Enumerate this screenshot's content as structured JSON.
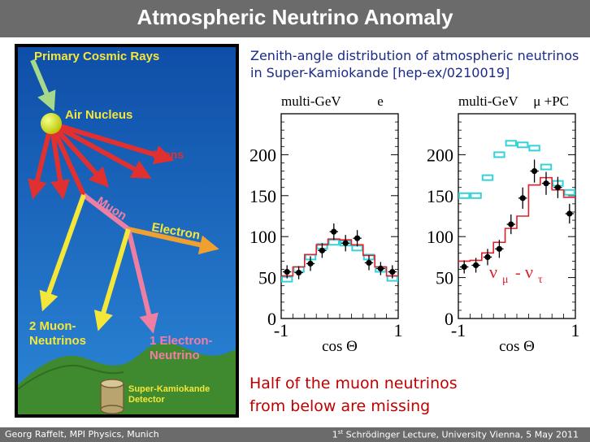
{
  "title": "Atmospheric Neutrino Anomaly",
  "illustration": {
    "primary_cosmic_rays": "Primary Cosmic Rays",
    "air_nucleus": "Air Nucleus",
    "pions": "Pions",
    "muon": "Muon",
    "electron": "Electron",
    "muon_neutrinos_1": "2 Muon-",
    "muon_neutrinos_2": "Neutrinos",
    "electron_neutrino_1": "1 Electron-",
    "electron_neutrino_2": "Neutrino",
    "detector_1": "Super-Kamiokande",
    "detector_2": "Detector",
    "colors": {
      "sky": "#1a6cc1",
      "ground": "#3f8a2f",
      "arrows_red": "#e03030",
      "arrows_yellow": "#f5e63a",
      "muon_pink": "#ee7fa3",
      "electron_orange": "#f0a030",
      "cosmic_green": "#a6d98a",
      "label_yellow": "#f5e63a"
    }
  },
  "caption_top": {
    "line1": "Zenith-angle distribution of atmospheric neutrinos",
    "line2": "in Super-Kamiokande [hep-ex/0210019]"
  },
  "chart_data": [
    {
      "type": "line",
      "header": "multi-GeV",
      "flavor_label": "e",
      "xlabel": "cos Θ",
      "xlim": [
        -1,
        1
      ],
      "ylim": [
        0,
        250
      ],
      "yticks": [
        0,
        50,
        100,
        150,
        200
      ],
      "xtick_labels": [
        "-1",
        "1"
      ],
      "bins": [
        -0.9,
        -0.7,
        -0.5,
        -0.3,
        -0.1,
        0.1,
        0.3,
        0.5,
        0.7,
        0.9
      ],
      "data": [
        57,
        56,
        67,
        83,
        106,
        92,
        98,
        68,
        61,
        57
      ],
      "errors": [
        8,
        8,
        9,
        9,
        10,
        10,
        10,
        9,
        8,
        8
      ],
      "mc_no_osc": [
        48,
        60,
        75,
        88,
        93,
        92,
        86,
        75,
        60,
        49
      ],
      "mc_osc": [
        52,
        63,
        78,
        90,
        97,
        96,
        90,
        77,
        63,
        52
      ]
    },
    {
      "type": "line",
      "header": "multi-GeV",
      "flavor_label": "μ +PC",
      "xlabel": "cos Θ",
      "xlim": [
        -1,
        1
      ],
      "ylim": [
        0,
        250
      ],
      "yticks": [
        0,
        50,
        100,
        150,
        200
      ],
      "xtick_labels": [
        "-1",
        "1"
      ],
      "oscillation_label": {
        "nu": "ν",
        "sub1": "μ",
        "dash": "-",
        "sub2": "τ"
      },
      "bins": [
        -0.9,
        -0.7,
        -0.5,
        -0.3,
        -0.1,
        0.1,
        0.3,
        0.5,
        0.7,
        0.9
      ],
      "data": [
        63,
        65,
        75,
        85,
        115,
        147,
        180,
        165,
        160,
        128
      ],
      "errors": [
        8,
        9,
        10,
        11,
        12,
        13,
        14,
        14,
        13,
        12
      ],
      "mc_no_osc": [
        150,
        150,
        172,
        200,
        214,
        212,
        208,
        185,
        165,
        154
      ],
      "mc_osc": [
        70,
        71,
        80,
        93,
        110,
        125,
        163,
        172,
        157,
        148
      ]
    }
  ],
  "caption_bottom": {
    "line1": "Half of the muon neutrinos",
    "line2": "from below are missing"
  },
  "footer": {
    "left": "Georg Raffelt, MPI Physics, Munich",
    "right_sup": "st",
    "right_num": "1",
    "right_text": " Schrödinger Lecture, University Vienna, 5 May 2011"
  }
}
